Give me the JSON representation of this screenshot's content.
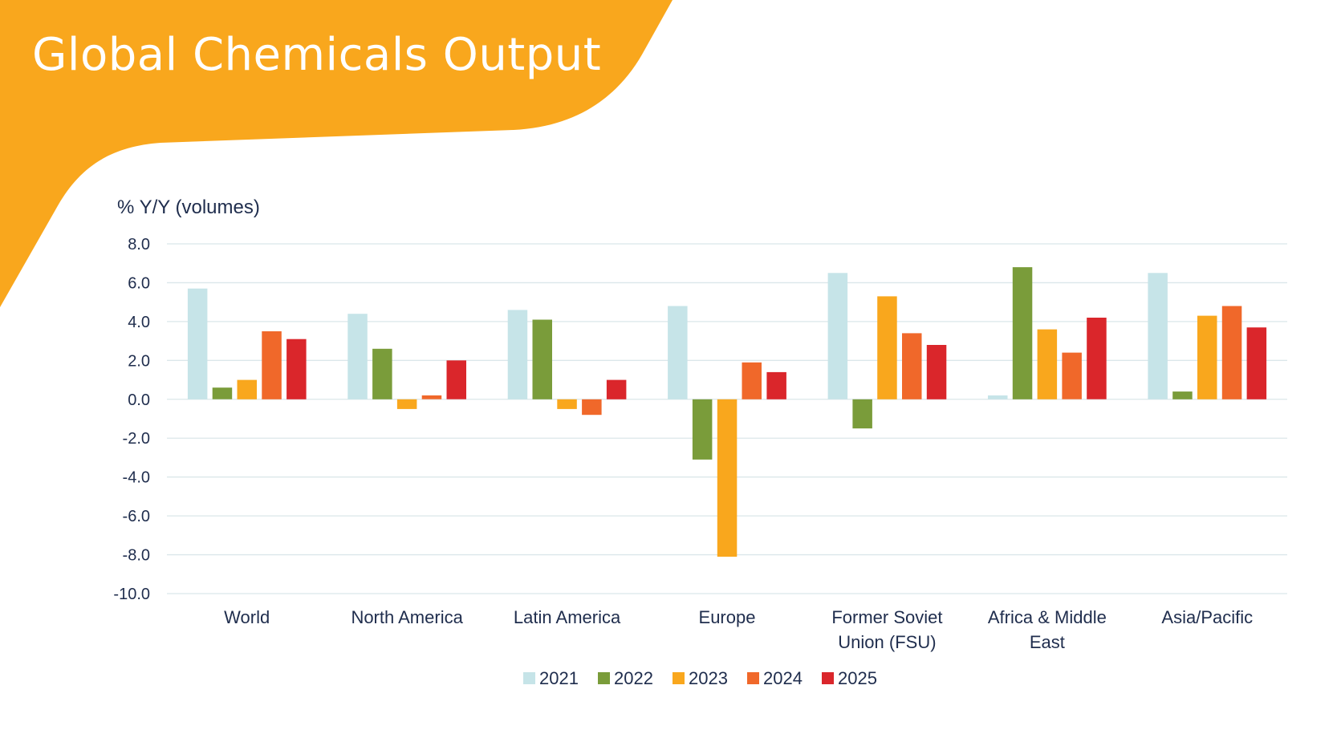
{
  "title": "Global Chemicals Output",
  "colors": {
    "accent": "#F9A71D",
    "gridline": "#dbe7ea",
    "text": "#1f2d4d",
    "series": [
      "#C6E4E8",
      "#7A9C3A",
      "#F9A71D",
      "#F0682A",
      "#DA262B"
    ]
  },
  "chart_data": {
    "type": "bar",
    "title": "Global Chemicals Output",
    "ylabel": "% Y/Y (volumes)",
    "xlabel": "",
    "ylim": [
      -10,
      8
    ],
    "yticks": [
      "8.0",
      "6.0",
      "4.0",
      "2.0",
      "0.0",
      "-2.0",
      "-4.0",
      "-6.0",
      "-8.0",
      "-10.0"
    ],
    "grid": true,
    "legend_position": "bottom",
    "categories": [
      [
        "World"
      ],
      [
        "North America"
      ],
      [
        "Latin America"
      ],
      [
        "Europe"
      ],
      [
        "Former Soviet",
        "Union (FSU)"
      ],
      [
        "Africa & Middle",
        "East"
      ],
      [
        "Asia/Pacific"
      ]
    ],
    "series": [
      {
        "name": "2021",
        "values": [
          5.7,
          4.4,
          4.6,
          4.8,
          6.5,
          0.2,
          6.5
        ]
      },
      {
        "name": "2022",
        "values": [
          0.6,
          2.6,
          4.1,
          -3.1,
          -1.5,
          6.8,
          0.4
        ]
      },
      {
        "name": "2023",
        "values": [
          1.0,
          -0.5,
          -0.5,
          -8.1,
          5.3,
          3.6,
          4.3
        ]
      },
      {
        "name": "2024",
        "values": [
          3.5,
          0.2,
          -0.8,
          1.9,
          3.4,
          2.4,
          4.8
        ]
      },
      {
        "name": "2025",
        "values": [
          3.1,
          2.0,
          1.0,
          1.4,
          2.8,
          4.2,
          3.7
        ]
      }
    ]
  }
}
